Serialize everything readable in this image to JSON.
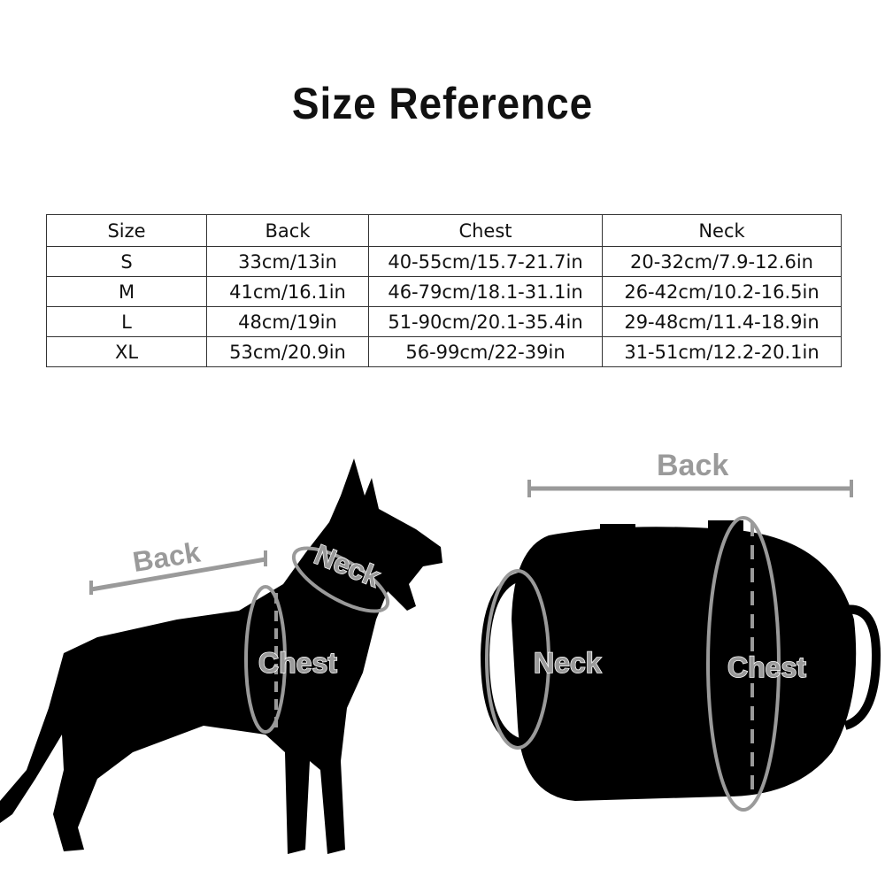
{
  "title": "Size Reference",
  "table": {
    "headers": [
      "Size",
      "Back",
      "Chest",
      "Neck"
    ],
    "rows": [
      [
        "S",
        "33cm/13in",
        "40-55cm/15.7-21.7in",
        "20-32cm/7.9-12.6in"
      ],
      [
        "M",
        "41cm/16.1in",
        "46-79cm/18.1-31.1in",
        "26-42cm/10.2-16.5in"
      ],
      [
        "L",
        "48cm/19in",
        "51-90cm/20.1-35.4in",
        "29-48cm/11.4-18.9in"
      ],
      [
        "XL",
        "53cm/20.9in",
        "56-99cm/22-39in",
        "31-51cm/12.2-20.1in"
      ]
    ]
  },
  "dog_diagram": {
    "back_label": "Back",
    "neck_label": "Neck",
    "chest_label": "Chest"
  },
  "harness_diagram": {
    "back_label": "Back",
    "neck_label": "Neck",
    "chest_label": "Chest"
  },
  "colors": {
    "label_gray": "#9a9a9a",
    "silhouette": "#000000"
  }
}
